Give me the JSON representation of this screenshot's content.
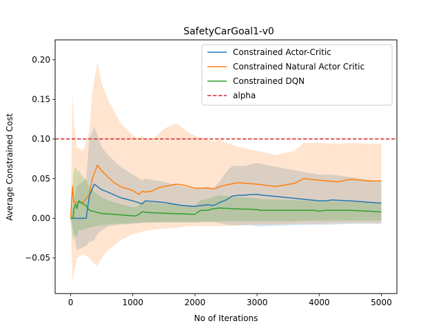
{
  "chart_data": {
    "type": "line",
    "title": "SafetyCarGoal1-v0",
    "xlabel": "No of Iterations",
    "ylabel": "Average Constrained Cost",
    "xlim": [
      -250,
      5250
    ],
    "ylim": [
      -0.095,
      0.225
    ],
    "x_ticks": [
      0,
      1000,
      2000,
      3000,
      4000,
      5000
    ],
    "x_tick_labels": [
      "0",
      "1000",
      "2000",
      "3000",
      "4000",
      "5000"
    ],
    "y_ticks": [
      -0.05,
      0.0,
      0.05,
      0.1,
      0.15,
      0.2
    ],
    "y_tick_labels": [
      "−0.05",
      "0.00",
      "0.05",
      "0.10",
      "0.15",
      "0.20"
    ],
    "grid": false,
    "legend_position": "top-right",
    "reference_line": {
      "name": "alpha",
      "y": 0.1,
      "color": "#d62728",
      "style": "dashed"
    },
    "series": [
      {
        "name": "Constrained Actor-Critic",
        "color": "#1f77b4",
        "x": [
          0,
          100,
          250,
          300,
          380,
          430,
          500,
          600,
          800,
          1000,
          1150,
          1200,
          1500,
          1800,
          2000,
          2100,
          2200,
          2300,
          2400,
          2500,
          2600,
          2700,
          2800,
          2900,
          3000,
          3100,
          3500,
          4000,
          4100,
          4200,
          4500,
          5000
        ],
        "y": [
          0.0,
          0.0,
          0.0,
          0.028,
          0.043,
          0.04,
          0.036,
          0.033,
          0.026,
          0.022,
          0.018,
          0.022,
          0.02,
          0.016,
          0.015,
          0.016,
          0.017,
          0.016,
          0.02,
          0.023,
          0.028,
          0.029,
          0.029,
          0.03,
          0.03,
          0.029,
          0.026,
          0.022,
          0.022,
          0.023,
          0.022,
          0.019
        ],
        "lower": [
          0.0,
          -0.04,
          -0.035,
          -0.03,
          -0.028,
          -0.02,
          -0.015,
          -0.01,
          -0.008,
          -0.007,
          -0.006,
          -0.006,
          -0.005,
          -0.005,
          -0.005,
          -0.005,
          -0.005,
          -0.005,
          -0.006,
          -0.008,
          -0.009,
          -0.009,
          -0.009,
          -0.009,
          -0.01,
          -0.01,
          -0.009,
          -0.008,
          -0.008,
          -0.008,
          -0.007,
          -0.007
        ],
        "upper": [
          0.0,
          0.04,
          0.05,
          0.1,
          0.115,
          0.105,
          0.09,
          0.08,
          0.065,
          0.055,
          0.048,
          0.05,
          0.046,
          0.04,
          0.037,
          0.038,
          0.04,
          0.038,
          0.047,
          0.058,
          0.066,
          0.066,
          0.066,
          0.068,
          0.07,
          0.068,
          0.062,
          0.055,
          0.055,
          0.055,
          0.052,
          0.046
        ]
      },
      {
        "name": "Constrained Natural Actor Critic",
        "color": "#ff7f0e",
        "x": [
          0,
          30,
          50,
          100,
          200,
          300,
          350,
          430,
          500,
          600,
          700,
          800,
          1000,
          1100,
          1150,
          1200,
          1300,
          1400,
          1500,
          1700,
          1800,
          1900,
          2000,
          2200,
          2300,
          2400,
          2500,
          2700,
          3000,
          3300,
          3600,
          3750,
          4000,
          4300,
          4500,
          4800,
          5000
        ],
        "y": [
          0.0,
          0.04,
          0.02,
          0.02,
          0.02,
          0.03,
          0.05,
          0.067,
          0.06,
          0.052,
          0.045,
          0.04,
          0.035,
          0.03,
          0.034,
          0.033,
          0.034,
          0.038,
          0.04,
          0.043,
          0.042,
          0.04,
          0.038,
          0.038,
          0.037,
          0.04,
          0.042,
          0.045,
          0.043,
          0.04,
          0.044,
          0.05,
          0.048,
          0.046,
          0.049,
          0.047,
          0.047
        ],
        "lower": [
          0.0,
          -0.08,
          -0.07,
          -0.05,
          -0.045,
          -0.05,
          -0.055,
          -0.06,
          -0.05,
          -0.04,
          -0.035,
          -0.028,
          -0.02,
          -0.018,
          -0.017,
          -0.016,
          -0.015,
          -0.014,
          -0.013,
          -0.012,
          -0.011,
          -0.01,
          -0.01,
          -0.01,
          -0.01,
          -0.01,
          -0.01,
          -0.009,
          -0.008,
          -0.008,
          -0.007,
          -0.007,
          -0.007,
          -0.006,
          -0.006,
          -0.006,
          -0.006
        ],
        "upper": [
          0.0,
          0.16,
          0.12,
          0.09,
          0.085,
          0.11,
          0.16,
          0.197,
          0.17,
          0.15,
          0.135,
          0.12,
          0.105,
          0.1,
          0.105,
          0.1,
          0.1,
          0.105,
          0.113,
          0.12,
          0.114,
          0.108,
          0.104,
          0.1,
          0.097,
          0.1,
          0.095,
          0.09,
          0.085,
          0.08,
          0.085,
          0.095,
          0.095,
          0.094,
          0.095,
          0.094,
          0.094
        ]
      },
      {
        "name": "Constrained DQN",
        "color": "#2ca02c",
        "x": [
          0,
          40,
          50,
          80,
          100,
          130,
          200,
          250,
          300,
          400,
          500,
          700,
          1000,
          1050,
          1100,
          1150,
          1300,
          1600,
          2000,
          2050,
          2100,
          2200,
          2300,
          2400,
          2600,
          3000,
          3050,
          3500,
          3900,
          4000,
          4100,
          4500,
          5000
        ],
        "y": [
          0.0,
          0.0,
          0.012,
          0.018,
          0.012,
          0.022,
          0.018,
          0.016,
          0.01,
          0.008,
          0.006,
          0.005,
          0.003,
          0.003,
          0.005,
          0.008,
          0.007,
          0.006,
          0.005,
          0.008,
          0.01,
          0.01,
          0.012,
          0.013,
          0.012,
          0.011,
          0.01,
          0.01,
          0.01,
          0.009,
          0.01,
          0.01,
          0.008
        ],
        "lower": [
          0.0,
          -0.03,
          -0.025,
          -0.02,
          -0.025,
          -0.015,
          -0.015,
          -0.013,
          -0.012,
          -0.01,
          -0.009,
          -0.007,
          -0.006,
          -0.006,
          -0.006,
          -0.005,
          -0.005,
          -0.005,
          -0.005,
          -0.005,
          -0.004,
          -0.004,
          -0.004,
          -0.004,
          -0.004,
          -0.004,
          -0.004,
          -0.004,
          -0.003,
          -0.003,
          -0.003,
          -0.003,
          -0.003
        ],
        "upper": [
          0.0,
          0.05,
          0.06,
          0.065,
          0.06,
          0.06,
          0.052,
          0.048,
          0.04,
          0.032,
          0.026,
          0.02,
          0.014,
          0.014,
          0.017,
          0.021,
          0.02,
          0.018,
          0.016,
          0.02,
          0.023,
          0.024,
          0.027,
          0.029,
          0.027,
          0.025,
          0.024,
          0.023,
          0.022,
          0.021,
          0.022,
          0.021,
          0.019
        ]
      }
    ]
  }
}
